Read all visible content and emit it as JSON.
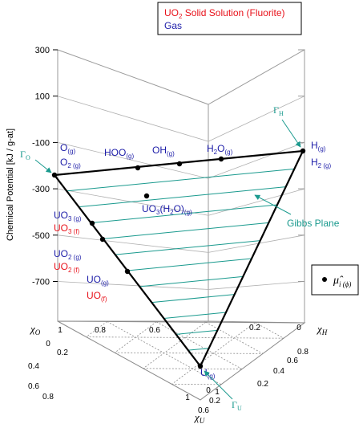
{
  "chart_data": {
    "type": "scatter",
    "ylabel": "Chemical Potential [kJ / g-at]",
    "ylim": [
      -950,
      300
    ],
    "y_ticks": [
      {
        "value": 300,
        "label": "300"
      },
      {
        "value": 100,
        "label": "100"
      },
      {
        "value": -100,
        "label": "-100"
      },
      {
        "value": -300,
        "label": "-300"
      },
      {
        "value": -500,
        "label": "-500"
      },
      {
        "value": -700,
        "label": "-700"
      }
    ],
    "axes": {
      "xO": {
        "label": "χO",
        "ticks": [
          "1",
          "0.8",
          "0.6"
        ]
      },
      "xH": {
        "label": "χH",
        "ticks": [
          "0.2",
          "0.4",
          "0.6",
          "0.8",
          "1"
        ]
      },
      "xU": {
        "label": "χU",
        "ticks": [
          "0",
          "0.2",
          "0.4",
          "0.6",
          "0.8",
          "1"
        ]
      },
      "back_right_ticks": [
        "0",
        "0.2"
      ]
    },
    "legend": {
      "placement": "top-right",
      "entries": [
        {
          "label": "UO2 Solid Solution (Fluorite)",
          "color": "#e8121b"
        },
        {
          "label": "Gas",
          "color": "#1c1ca8"
        }
      ]
    },
    "gibbs_plane": {
      "vertices": [
        {
          "name": "O",
          "composition": {
            "O": 1,
            "H": 0,
            "U": 0
          },
          "mu": -200
        },
        {
          "name": "H",
          "composition": {
            "O": 0,
            "H": 1,
            "U": 0
          },
          "mu": -120
        },
        {
          "name": "U",
          "composition": {
            "O": 0,
            "H": 0,
            "U": 1
          },
          "mu": -950
        }
      ],
      "label": "Gibbs Plane",
      "color": "#1a9a8e",
      "hatch_lines": 11
    },
    "species": [
      {
        "x_O": 1.0,
        "x_H": 0.0,
        "x_U": 0.0,
        "dot": true,
        "lines": [
          {
            "base": "O",
            "sub": "(g)",
            "color": "#1c1ca8"
          },
          {
            "base": "O",
            "sub": "2 (g)",
            "color": "#1c1ca8"
          }
        ]
      },
      {
        "x_O": 0.5,
        "x_H": 0.5,
        "x_U": 0.0,
        "dot": true,
        "lines": [
          {
            "base": "HOO",
            "sub": "(g)",
            "color": "#1c1ca8"
          }
        ]
      },
      {
        "x_O": 0.33,
        "x_H": 0.67,
        "x_U": 0.0,
        "dot": true,
        "lines": [
          {
            "base": "OH",
            "sub": "(g)",
            "color": "#1c1ca8"
          }
        ]
      },
      {
        "x_O": 0.33,
        "x_H": 0.67,
        "x_U": 0.0,
        "dot": true,
        "lines": [
          {
            "base": "H",
            "sub": "2",
            "base2": "O",
            "sub2": "(g)",
            "color": "#1c1ca8"
          }
        ]
      },
      {
        "x_O": 0.0,
        "x_H": 1.0,
        "x_U": 0.0,
        "dot": true,
        "lines": [
          {
            "base": "H",
            "sub": "(g)",
            "color": "#1c1ca8"
          },
          {
            "base": "H",
            "sub": "2 (g)",
            "color": "#1c1ca8"
          }
        ]
      },
      {
        "x_O": 0.75,
        "x_H": 0.0,
        "x_U": 0.25,
        "dot": true,
        "lines": [
          {
            "base": "UO",
            "sub": "3 (g)",
            "color": "#1c1ca8"
          },
          {
            "base": "UO",
            "sub": "3 (f)",
            "color": "#e8121b"
          }
        ]
      },
      {
        "x_O": 0.67,
        "x_H": 0.0,
        "x_U": 0.33,
        "dot": true,
        "lines": [
          {
            "base": "UO",
            "sub": "2 (g)",
            "color": "#1c1ca8"
          },
          {
            "base": "UO",
            "sub": "2 (f)",
            "color": "#e8121b"
          }
        ]
      },
      {
        "x_O": 0.5,
        "x_H": 0.0,
        "x_U": 0.5,
        "dot": true,
        "lines": [
          {
            "base": "UO",
            "sub": "(g)",
            "color": "#1c1ca8"
          },
          {
            "base": "UO",
            "sub": "(f)",
            "color": "#e8121b"
          }
        ]
      },
      {
        "x_O": 0.0,
        "x_H": 0.0,
        "x_U": 1.0,
        "dot": true,
        "lines": [
          {
            "base": "U",
            "sub": "(g)",
            "color": "#1c1ca8"
          }
        ]
      },
      {
        "x_O": 0.53,
        "x_H": 0.27,
        "x_U": 0.2,
        "dot": true,
        "lines": [
          {
            "base": "UO",
            "sub": "3",
            "base2": "(H",
            "sub2": "2",
            "base3": "O)",
            "sub3": "(g)",
            "color": "#1c1ca8"
          }
        ]
      }
    ],
    "annotations": [
      {
        "text": "Γ",
        "sub": "O",
        "color": "#1a9a8e"
      },
      {
        "text": "Γ",
        "sub": "H",
        "color": "#1a9a8e"
      },
      {
        "text": "Γ",
        "sub": "U",
        "color": "#1a9a8e"
      },
      {
        "text": "Gibbs Plane",
        "color": "#1a9a8e"
      }
    ],
    "marker_legend": {
      "symbol": "μ̂",
      "sub": "i (ϕ)"
    }
  }
}
